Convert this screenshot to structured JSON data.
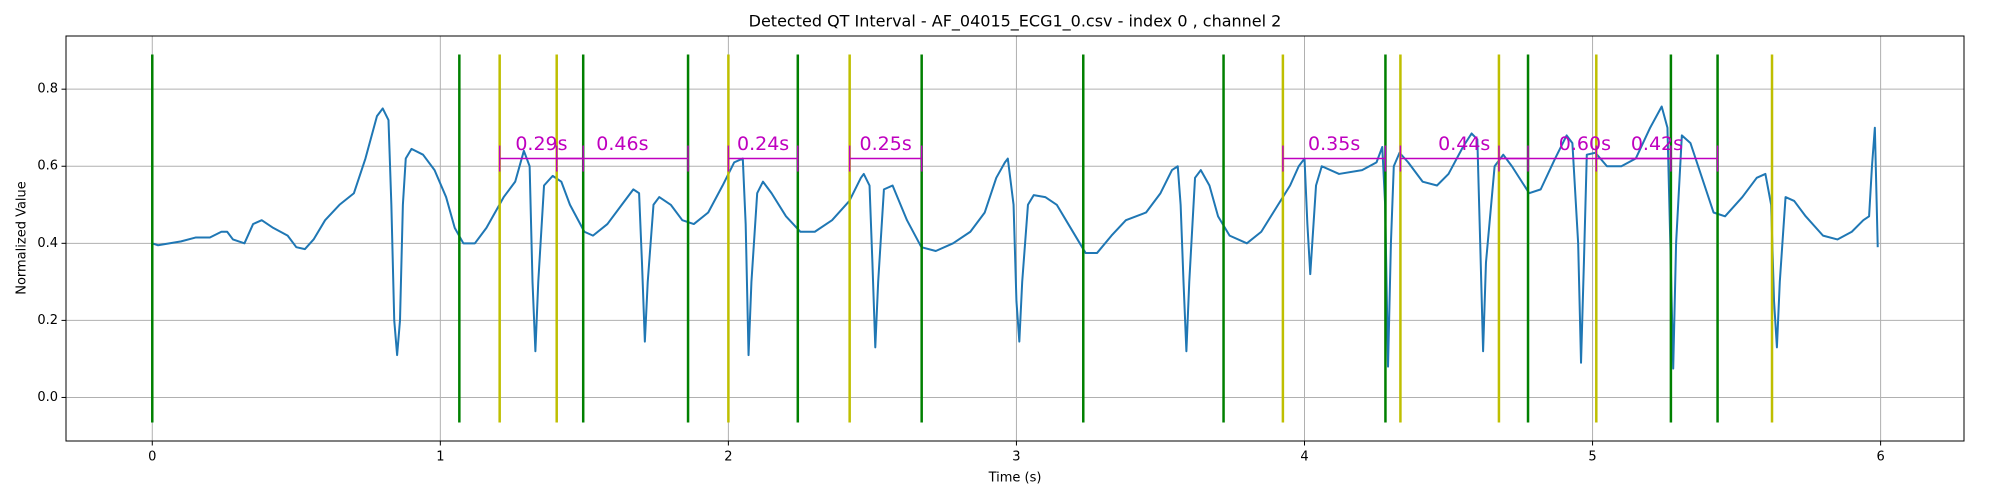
{
  "chart_data": {
    "type": "line",
    "title": "Detected QT Interval - AF_04015_ECG1_0.csv - index 0 , channel 2",
    "xlabel": "Time (s)",
    "ylabel": "Normalized Value",
    "xlim": [
      -0.2995,
      6.2895
    ],
    "ylim": [
      -0.113,
      0.938
    ],
    "xticks": [
      0,
      1,
      2,
      3,
      4,
      5,
      6
    ],
    "yticks": [
      {
        "value": 0,
        "label": "0.0"
      },
      0.2,
      0.4,
      0.6,
      0.8
    ],
    "grid": true,
    "color": "#1f77b4",
    "x": [
      0,
      0.02,
      0.1,
      0.15,
      0.2,
      0.24,
      0.26,
      0.28,
      0.32,
      0.35,
      0.38,
      0.42,
      0.47,
      0.5,
      0.53,
      0.56,
      0.6,
      0.65,
      0.7,
      0.74,
      0.78,
      0.8,
      0.82,
      0.83,
      0.84,
      0.85,
      0.86,
      0.87,
      0.88,
      0.9,
      0.94,
      0.98,
      1.02,
      1.05,
      1.08,
      1.12,
      1.16,
      1.22,
      1.26,
      1.29,
      1.31,
      1.32,
      1.33,
      1.34,
      1.36,
      1.39,
      1.42,
      1.45,
      1.5,
      1.53,
      1.58,
      1.63,
      1.67,
      1.69,
      1.7,
      1.71,
      1.72,
      1.74,
      1.76,
      1.8,
      1.84,
      1.88,
      1.93,
      1.98,
      2.02,
      2.05,
      2.06,
      2.07,
      2.08,
      2.1,
      2.12,
      2.15,
      2.2,
      2.25,
      2.3,
      2.36,
      2.42,
      2.46,
      2.47,
      2.49,
      2.5,
      2.51,
      2.52,
      2.54,
      2.57,
      2.62,
      2.67,
      2.72,
      2.78,
      2.84,
      2.89,
      2.93,
      2.96,
      2.97,
      2.99,
      3.0,
      3.01,
      3.02,
      3.04,
      3.06,
      3.1,
      3.14,
      3.18,
      3.24,
      3.28,
      3.33,
      3.38,
      3.45,
      3.5,
      3.54,
      3.56,
      3.57,
      3.58,
      3.59,
      3.6,
      3.62,
      3.64,
      3.67,
      3.7,
      3.74,
      3.8,
      3.85,
      3.9,
      3.95,
      3.98,
      4.0,
      4.01,
      4.02,
      4.04,
      4.06,
      4.12,
      4.2,
      4.25,
      4.27,
      4.28,
      4.29,
      4.3,
      4.31,
      4.33,
      4.36,
      4.41,
      4.46,
      4.5,
      4.55,
      4.58,
      4.6,
      4.61,
      4.62,
      4.63,
      4.66,
      4.69,
      4.72,
      4.78,
      4.82,
      4.87,
      4.91,
      4.93,
      4.95,
      4.96,
      4.97,
      4.98,
      5.01,
      5.05,
      5.1,
      5.15,
      5.2,
      5.24,
      5.26,
      5.27,
      5.28,
      5.29,
      5.31,
      5.34,
      5.38,
      5.42,
      5.46,
      5.52,
      5.57,
      5.6,
      5.62,
      5.63,
      5.64,
      5.65,
      5.67,
      5.7,
      5.74,
      5.8,
      5.85,
      5.9,
      5.94,
      5.96,
      5.97,
      5.98,
      5.99
    ],
    "values": [
      0.4,
      0.395,
      0.405,
      0.415,
      0.415,
      0.43,
      0.43,
      0.41,
      0.4,
      0.45,
      0.46,
      0.44,
      0.42,
      0.39,
      0.385,
      0.41,
      0.46,
      0.5,
      0.53,
      0.62,
      0.73,
      0.75,
      0.72,
      0.5,
      0.2,
      0.11,
      0.2,
      0.5,
      0.62,
      0.645,
      0.63,
      0.59,
      0.52,
      0.44,
      0.4,
      0.4,
      0.44,
      0.52,
      0.56,
      0.64,
      0.6,
      0.3,
      0.12,
      0.3,
      0.55,
      0.575,
      0.56,
      0.5,
      0.43,
      0.42,
      0.45,
      0.5,
      0.54,
      0.53,
      0.35,
      0.145,
      0.3,
      0.5,
      0.52,
      0.5,
      0.46,
      0.45,
      0.48,
      0.55,
      0.61,
      0.62,
      0.45,
      0.11,
      0.3,
      0.53,
      0.56,
      0.53,
      0.47,
      0.43,
      0.43,
      0.46,
      0.51,
      0.57,
      0.58,
      0.55,
      0.35,
      0.13,
      0.3,
      0.54,
      0.55,
      0.46,
      0.39,
      0.38,
      0.4,
      0.43,
      0.48,
      0.57,
      0.61,
      0.62,
      0.5,
      0.25,
      0.145,
      0.3,
      0.5,
      0.525,
      0.52,
      0.5,
      0.45,
      0.375,
      0.375,
      0.42,
      0.46,
      0.48,
      0.53,
      0.59,
      0.6,
      0.5,
      0.3,
      0.12,
      0.3,
      0.57,
      0.59,
      0.55,
      0.47,
      0.42,
      0.4,
      0.43,
      0.49,
      0.55,
      0.6,
      0.62,
      0.45,
      0.32,
      0.55,
      0.6,
      0.58,
      0.59,
      0.61,
      0.65,
      0.5,
      0.08,
      0.4,
      0.6,
      0.635,
      0.61,
      0.56,
      0.55,
      0.58,
      0.65,
      0.685,
      0.67,
      0.4,
      0.12,
      0.35,
      0.6,
      0.63,
      0.6,
      0.53,
      0.54,
      0.62,
      0.68,
      0.66,
      0.4,
      0.09,
      0.35,
      0.63,
      0.635,
      0.6,
      0.6,
      0.62,
      0.7,
      0.755,
      0.7,
      0.4,
      0.075,
      0.4,
      0.68,
      0.66,
      0.57,
      0.48,
      0.47,
      0.52,
      0.57,
      0.58,
      0.5,
      0.25,
      0.13,
      0.3,
      0.52,
      0.51,
      0.47,
      0.42,
      0.41,
      0.43,
      0.46,
      0.47,
      0.6,
      0.7,
      0.39
    ],
    "vline_ymin": -0.065,
    "vline_ymax": 0.89,
    "vlines": [
      {
        "color": "#008000",
        "x": [
          0,
          1.066,
          1.496,
          1.86,
          2.241,
          2.671,
          3.232,
          3.719,
          4.281,
          4.776,
          5.272,
          5.434
        ]
      },
      {
        "color": "#bfbf00",
        "x": [
          1.206,
          1.404,
          2.0,
          2.421,
          3.925,
          4.333,
          4.675,
          5.013,
          5.623
        ]
      }
    ],
    "interval_color": "#bf00bf",
    "intervals": [
      {
        "start": 1.206,
        "end": 1.496,
        "y": 0.62,
        "label": "0.29s"
      },
      {
        "start": 1.404,
        "end": 1.86,
        "y": 0.62,
        "label": "0.46s"
      },
      {
        "start": 2.0,
        "end": 2.241,
        "y": 0.62,
        "label": "0.24s"
      },
      {
        "start": 2.421,
        "end": 2.671,
        "y": 0.62,
        "label": "0.25s"
      },
      {
        "start": 3.925,
        "end": 4.281,
        "y": 0.62,
        "label": "0.35s"
      },
      {
        "start": 4.333,
        "end": 4.776,
        "y": 0.62,
        "label": "0.44s"
      },
      {
        "start": 4.675,
        "end": 5.272,
        "y": 0.62,
        "label": "0.60s"
      },
      {
        "start": 5.013,
        "end": 5.434,
        "y": 0.62,
        "label": "0.42s"
      }
    ]
  }
}
